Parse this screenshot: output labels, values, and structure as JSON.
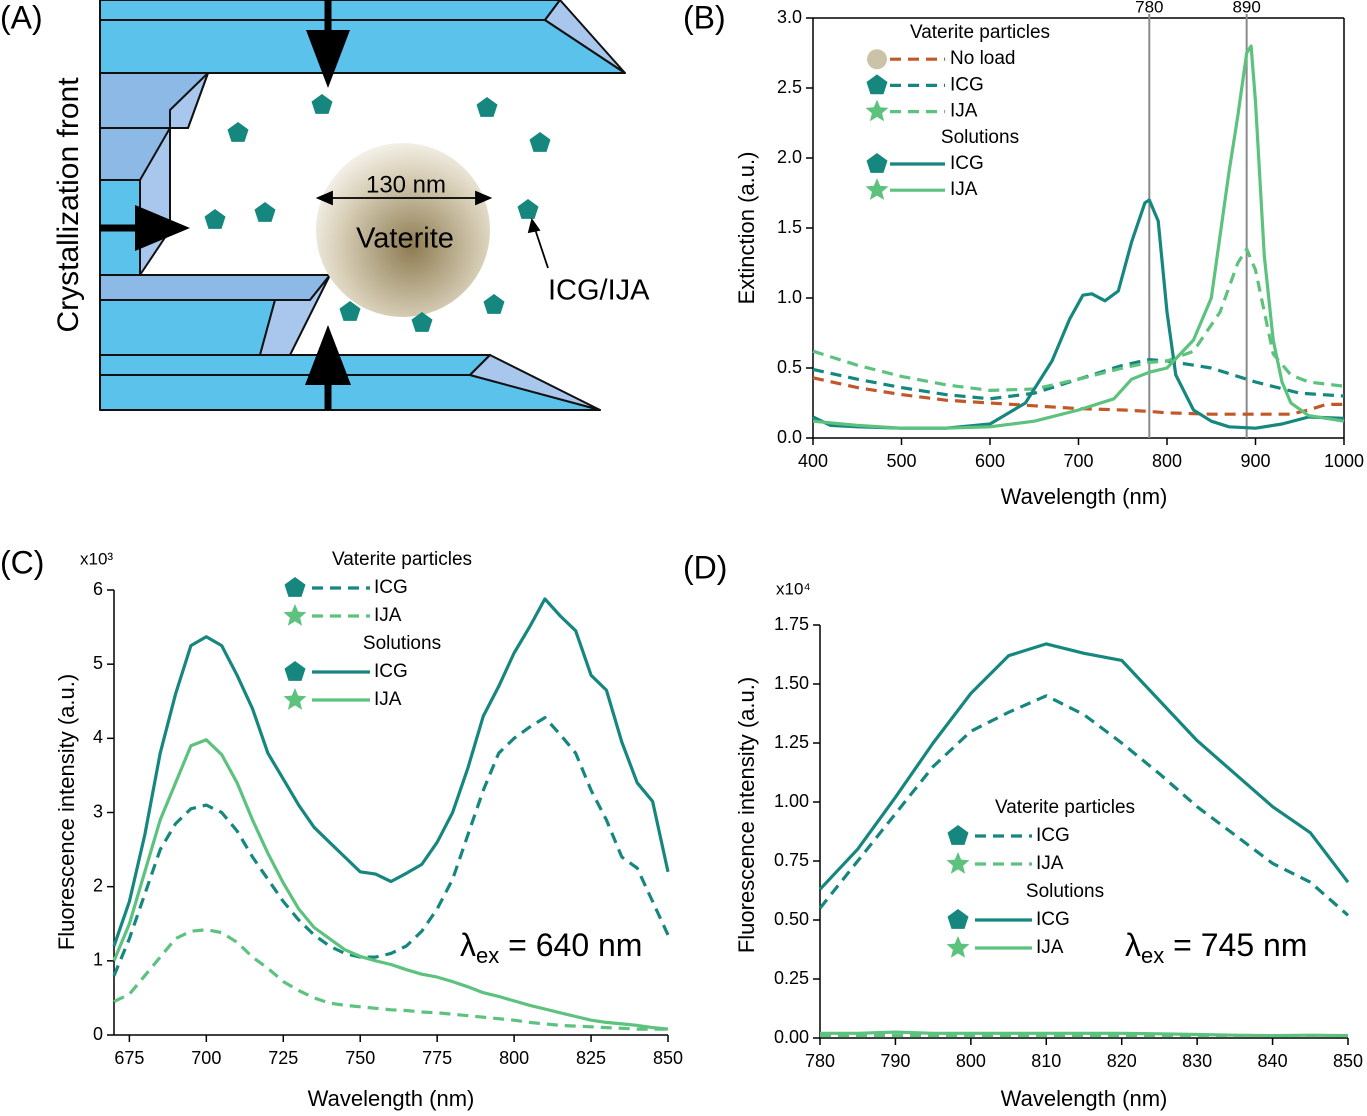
{
  "diagram": {
    "panel": "(A)",
    "crystallization_front": "Crystallization front",
    "size": "130 nm",
    "particle": "Vaterite",
    "dye": "ICG/IJA"
  },
  "chart_data": [
    {
      "type": "line",
      "panel": "(B)",
      "xlabel": "Wavelength (nm)",
      "ylabel": "Extinction (a.u.)",
      "frame": true,
      "xlim": [
        400,
        1000
      ],
      "xticks": [
        400,
        500,
        600,
        700,
        800,
        900,
        1000
      ],
      "ylim": [
        0,
        3
      ],
      "yticks": [
        {
          "value": 0,
          "label": "0.0"
        },
        0.5,
        {
          "value": 1,
          "label": "1.0"
        },
        1.5,
        {
          "value": 2,
          "label": "2.0"
        },
        2.5,
        {
          "value": 3,
          "label": "3.0"
        }
      ],
      "vlines": [
        780,
        890
      ],
      "vline_color": "#8a8a8a",
      "legend_groups": [
        "Vaterite particles",
        "Solutions"
      ],
      "series": [
        {
          "name": "No load",
          "group": 0,
          "color": "#c2582a",
          "dashed": true,
          "marker": "circle",
          "marker_color": "#cbc3a7",
          "x": [
            400,
            450,
            500,
            550,
            600,
            650,
            700,
            750,
            780,
            800,
            850,
            900,
            940,
            960,
            980,
            1000
          ],
          "values": [
            0.43,
            0.36,
            0.31,
            0.27,
            0.25,
            0.23,
            0.21,
            0.2,
            0.19,
            0.18,
            0.17,
            0.17,
            0.17,
            0.2,
            0.24,
            0.24
          ]
        },
        {
          "name": "ICG",
          "group": 0,
          "color": "#16877f",
          "dashed": true,
          "marker": "pentagon",
          "x": [
            400,
            450,
            500,
            550,
            600,
            650,
            700,
            750,
            780,
            800,
            850,
            900,
            950,
            1000
          ],
          "values": [
            0.49,
            0.42,
            0.36,
            0.31,
            0.28,
            0.32,
            0.42,
            0.52,
            0.56,
            0.55,
            0.5,
            0.4,
            0.32,
            0.3
          ]
        },
        {
          "name": "IJA",
          "group": 0,
          "color": "#5cc27e",
          "dashed": true,
          "marker": "star",
          "x": [
            400,
            450,
            500,
            550,
            600,
            650,
            700,
            750,
            780,
            800,
            830,
            860,
            880,
            890,
            900,
            920,
            940,
            960,
            1000
          ],
          "values": [
            0.62,
            0.52,
            0.44,
            0.38,
            0.34,
            0.35,
            0.42,
            0.5,
            0.54,
            0.55,
            0.62,
            0.9,
            1.25,
            1.35,
            1.2,
            0.6,
            0.45,
            0.4,
            0.37
          ]
        },
        {
          "name": "ICG",
          "group": 1,
          "color": "#16877f",
          "dashed": false,
          "marker": "pentagon",
          "x": [
            400,
            420,
            450,
            500,
            550,
            600,
            640,
            670,
            690,
            705,
            715,
            730,
            745,
            760,
            775,
            780,
            790,
            800,
            810,
            830,
            850,
            870,
            900,
            930,
            960,
            1000
          ],
          "values": [
            0.15,
            0.09,
            0.08,
            0.07,
            0.07,
            0.1,
            0.25,
            0.55,
            0.85,
            1.02,
            1.03,
            0.98,
            1.05,
            1.4,
            1.68,
            1.7,
            1.55,
            0.9,
            0.45,
            0.2,
            0.12,
            0.08,
            0.07,
            0.1,
            0.15,
            0.14
          ]
        },
        {
          "name": "IJA",
          "group": 1,
          "color": "#5cc27e",
          "dashed": false,
          "marker": "star",
          "x": [
            400,
            450,
            500,
            550,
            600,
            650,
            700,
            740,
            760,
            780,
            800,
            830,
            850,
            870,
            880,
            890,
            895,
            900,
            910,
            920,
            930,
            940,
            960,
            1000
          ],
          "values": [
            0.12,
            0.09,
            0.07,
            0.07,
            0.08,
            0.12,
            0.2,
            0.28,
            0.42,
            0.47,
            0.5,
            0.7,
            1.0,
            1.9,
            2.3,
            2.75,
            2.8,
            2.4,
            1.3,
            0.7,
            0.4,
            0.25,
            0.16,
            0.12
          ]
        }
      ]
    },
    {
      "type": "line",
      "panel": "(C)",
      "xlabel": "Wavelength (nm)",
      "ylabel": "Fluorescence intensity (a.u.)",
      "frame": false,
      "multiplier": "x10³",
      "annotation": {
        "symbol": "λ",
        "sub": "ex",
        "text": " = 640 nm"
      },
      "xlim": [
        670,
        850
      ],
      "xticks": [
        675,
        700,
        725,
        750,
        775,
        800,
        825,
        850
      ],
      "ylim": [
        0,
        6
      ],
      "yticks": [
        0,
        1,
        2,
        3,
        4,
        5,
        6
      ],
      "legend_groups": [
        "Vaterite particles",
        "Solutions"
      ],
      "x": [
        670,
        675,
        680,
        685,
        690,
        695,
        700,
        705,
        710,
        715,
        720,
        725,
        730,
        735,
        740,
        745,
        750,
        755,
        760,
        765,
        770,
        775,
        780,
        785,
        790,
        795,
        800,
        805,
        810,
        815,
        820,
        825,
        830,
        835,
        840,
        845,
        850
      ],
      "series": [
        {
          "name": "ICG",
          "group": 0,
          "color": "#16877f",
          "dashed": true,
          "marker": "pentagon",
          "values": [
            0.8,
            1.3,
            1.9,
            2.5,
            2.85,
            3.05,
            3.1,
            3.0,
            2.75,
            2.4,
            2.1,
            1.8,
            1.55,
            1.35,
            1.2,
            1.1,
            1.05,
            1.05,
            1.1,
            1.2,
            1.4,
            1.7,
            2.1,
            2.7,
            3.3,
            3.8,
            4.0,
            4.15,
            4.28,
            4.05,
            3.8,
            3.3,
            2.9,
            2.4,
            2.25,
            1.8,
            1.35
          ]
        },
        {
          "name": "IJA",
          "group": 0,
          "color": "#5cc27e",
          "dashed": true,
          "marker": "star",
          "values": [
            0.45,
            0.55,
            0.8,
            1.05,
            1.3,
            1.4,
            1.42,
            1.38,
            1.25,
            1.05,
            0.9,
            0.72,
            0.6,
            0.5,
            0.43,
            0.4,
            0.38,
            0.36,
            0.34,
            0.33,
            0.31,
            0.3,
            0.28,
            0.26,
            0.24,
            0.22,
            0.2,
            0.17,
            0.15,
            0.13,
            0.12,
            0.11,
            0.1,
            0.09,
            0.08,
            0.08,
            0.08
          ]
        },
        {
          "name": "ICG",
          "group": 1,
          "color": "#16877f",
          "dashed": false,
          "marker": "pentagon",
          "values": [
            1.2,
            1.8,
            2.7,
            3.8,
            4.6,
            5.25,
            5.37,
            5.25,
            4.85,
            4.4,
            3.8,
            3.45,
            3.1,
            2.8,
            2.6,
            2.4,
            2.2,
            2.17,
            2.07,
            2.18,
            2.3,
            2.6,
            3.0,
            3.6,
            4.3,
            4.7,
            5.15,
            5.5,
            5.88,
            5.65,
            5.45,
            4.85,
            4.65,
            3.95,
            3.4,
            3.15,
            2.2
          ]
        },
        {
          "name": "IJA",
          "group": 1,
          "color": "#5cc27e",
          "dashed": false,
          "marker": "star",
          "values": [
            1.0,
            1.5,
            2.2,
            2.9,
            3.4,
            3.9,
            3.98,
            3.78,
            3.4,
            2.9,
            2.45,
            2.05,
            1.7,
            1.45,
            1.3,
            1.15,
            1.06,
            1.0,
            0.95,
            0.88,
            0.82,
            0.78,
            0.72,
            0.65,
            0.57,
            0.52,
            0.46,
            0.4,
            0.35,
            0.3,
            0.25,
            0.2,
            0.17,
            0.15,
            0.13,
            0.1,
            0.08
          ]
        }
      ]
    },
    {
      "type": "line",
      "panel": "(D)",
      "xlabel": "Wavelength (nm)",
      "ylabel": "Fluorescence intensity (a.u.)",
      "frame": false,
      "multiplier": "x10⁴",
      "annotation": {
        "symbol": "λ",
        "sub": "ex",
        "text": " = 745 nm"
      },
      "xlim": [
        780,
        850
      ],
      "xticks": [
        780,
        790,
        800,
        810,
        820,
        830,
        840,
        850
      ],
      "ylim": [
        0,
        1.75
      ],
      "yticks": [
        {
          "value": 0,
          "label": "0.00"
        },
        0.25,
        {
          "value": 0.5,
          "label": "0.50"
        },
        0.75,
        {
          "value": 1,
          "label": "1.00"
        },
        1.25,
        {
          "value": 1.5,
          "label": "1.50"
        },
        1.75
      ],
      "legend_groups": [
        "Vaterite particles",
        "Solutions"
      ],
      "x": [
        780,
        785,
        790,
        795,
        800,
        805,
        810,
        815,
        820,
        825,
        830,
        835,
        840,
        845,
        850
      ],
      "series": [
        {
          "name": "ICG",
          "group": 0,
          "color": "#16877f",
          "dashed": true,
          "marker": "pentagon",
          "values": [
            0.55,
            0.75,
            0.95,
            1.15,
            1.3,
            1.38,
            1.45,
            1.37,
            1.25,
            1.12,
            0.98,
            0.86,
            0.74,
            0.66,
            0.52
          ]
        },
        {
          "name": "IJA",
          "group": 0,
          "color": "#5cc27e",
          "dashed": true,
          "marker": "star",
          "values": [
            0.01,
            0.01,
            0.01,
            0.01,
            0.01,
            0.01,
            0.01,
            0.01,
            0.01,
            0.01,
            0.01,
            0.01,
            0.01,
            0.01,
            0.01
          ]
        },
        {
          "name": "ICG",
          "group": 1,
          "color": "#16877f",
          "dashed": false,
          "marker": "pentagon",
          "values": [
            0.63,
            0.8,
            1.02,
            1.25,
            1.46,
            1.62,
            1.67,
            1.63,
            1.6,
            1.43,
            1.26,
            1.12,
            0.98,
            0.87,
            0.66
          ]
        },
        {
          "name": "IJA",
          "group": 1,
          "color": "#5cc27e",
          "dashed": false,
          "marker": "star",
          "values": [
            0.02,
            0.02,
            0.025,
            0.02,
            0.02,
            0.02,
            0.02,
            0.02,
            0.02,
            0.018,
            0.015,
            0.012,
            0.01,
            0.012,
            0.01
          ]
        }
      ]
    }
  ]
}
